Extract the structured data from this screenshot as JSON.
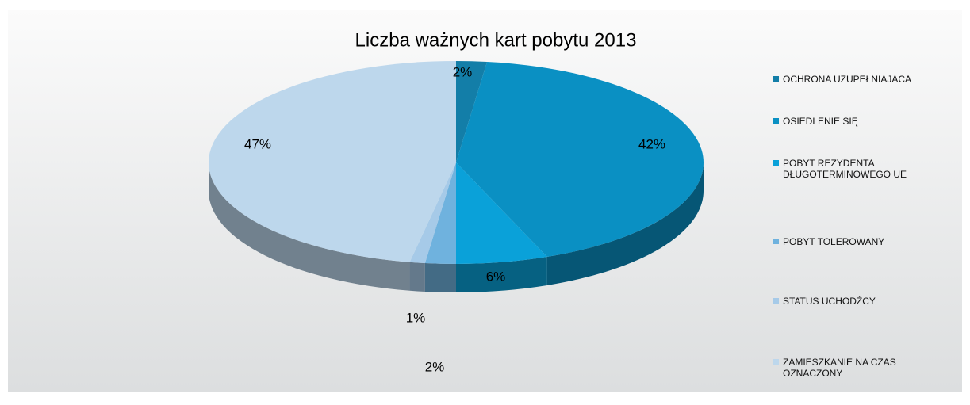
{
  "chart_data": {
    "type": "pie",
    "title": "Liczba ważnych kart pobytu 2013",
    "categories": [
      "OCHRONA UZUPEŁNIAJACA",
      "OSIEDLENIE SIĘ",
      "POBYT REZYDENTA DŁUGOTERMINOWEGO UE",
      "POBYT TOLEROWANY",
      "STATUS UCHODŹCY",
      "ZAMIESZKANIE NA CZAS OZNACZONY"
    ],
    "values": [
      2,
      42,
      6,
      2,
      1,
      47
    ],
    "value_labels": [
      "2%",
      "42%",
      "6%",
      "2%",
      "1%",
      "47%"
    ],
    "colors": [
      "#137ea8",
      "#0a90c3",
      "#0aa1d9",
      "#6fb2de",
      "#a6cae8",
      "#bdd7ec"
    ],
    "legend": "right"
  }
}
